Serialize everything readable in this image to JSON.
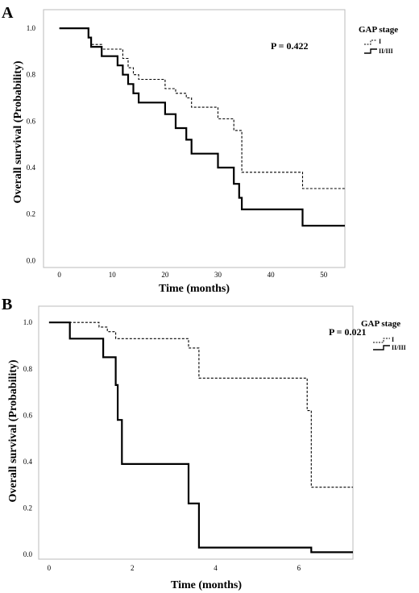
{
  "chart_data": [
    {
      "panel": "A",
      "type": "line",
      "step": true,
      "xlabel": "Time (months)",
      "ylabel": "Overall survival (Probability)",
      "xlim": [
        -3,
        54
      ],
      "ylim": [
        -0.03,
        1.08
      ],
      "xticks": [
        0,
        10,
        20,
        30,
        40,
        50
      ],
      "yticks": [
        0.0,
        0.2,
        0.4,
        0.6,
        0.8,
        1.0
      ],
      "xtick_labels": [
        "0",
        "10",
        "20",
        "30",
        "40",
        "50"
      ],
      "ytick_labels": [
        "0.0",
        "0.2",
        "0.4",
        "0.6",
        "0.8",
        "1.0"
      ],
      "annotation": "P = 0.422",
      "legend": {
        "title": "GAP stage",
        "position": "top-right"
      },
      "grid": false,
      "series": [
        {
          "name": "I",
          "style": "dashed",
          "x": [
            0,
            5.5,
            6,
            8,
            12,
            13,
            14,
            15,
            20,
            22,
            24,
            25,
            30,
            33,
            34.5,
            46,
            54
          ],
          "y": [
            1.0,
            0.96,
            0.93,
            0.91,
            0.87,
            0.83,
            0.8,
            0.78,
            0.74,
            0.72,
            0.7,
            0.66,
            0.61,
            0.56,
            0.38,
            0.31,
            0.31
          ]
        },
        {
          "name": "II/III",
          "style": "solid",
          "x": [
            0,
            5.5,
            6,
            8,
            11,
            12,
            13,
            14,
            15,
            20,
            22,
            24,
            25,
            30,
            33,
            34,
            34.5,
            46,
            54
          ],
          "y": [
            1.0,
            0.96,
            0.92,
            0.88,
            0.84,
            0.8,
            0.76,
            0.72,
            0.68,
            0.63,
            0.57,
            0.52,
            0.46,
            0.4,
            0.33,
            0.27,
            0.22,
            0.15,
            0.15
          ]
        }
      ]
    },
    {
      "panel": "B",
      "type": "line",
      "step": true,
      "xlabel": "Time (months)",
      "ylabel": "Overall survival (Probability)",
      "xlim": [
        -0.25,
        7.3
      ],
      "ylim": [
        -0.02,
        1.07
      ],
      "xticks": [
        0,
        2,
        4,
        6
      ],
      "yticks": [
        0.0,
        0.2,
        0.4,
        0.6,
        0.8,
        1.0
      ],
      "xtick_labels": [
        "0",
        "2",
        "4",
        "6"
      ],
      "ytick_labels": [
        "0.0",
        "0.2",
        "0.4",
        "0.6",
        "0.8",
        "1.0"
      ],
      "annotation": "P = 0.021",
      "legend": {
        "title": "GAP stage",
        "position": "top-right"
      },
      "grid": false,
      "series": [
        {
          "name": "I",
          "style": "dashed",
          "x": [
            0,
            1.2,
            1.4,
            1.6,
            3.35,
            3.6,
            6.2,
            6.3,
            7.3
          ],
          "y": [
            1.0,
            0.98,
            0.96,
            0.93,
            0.89,
            0.76,
            0.62,
            0.29,
            0.29
          ]
        },
        {
          "name": "II/III",
          "style": "solid",
          "x": [
            0,
            0.5,
            1.3,
            1.6,
            1.65,
            1.75,
            3.35,
            3.6,
            6.3,
            7.3
          ],
          "y": [
            1.0,
            0.93,
            0.85,
            0.73,
            0.58,
            0.39,
            0.22,
            0.03,
            0.01,
            0.01
          ]
        }
      ]
    }
  ]
}
